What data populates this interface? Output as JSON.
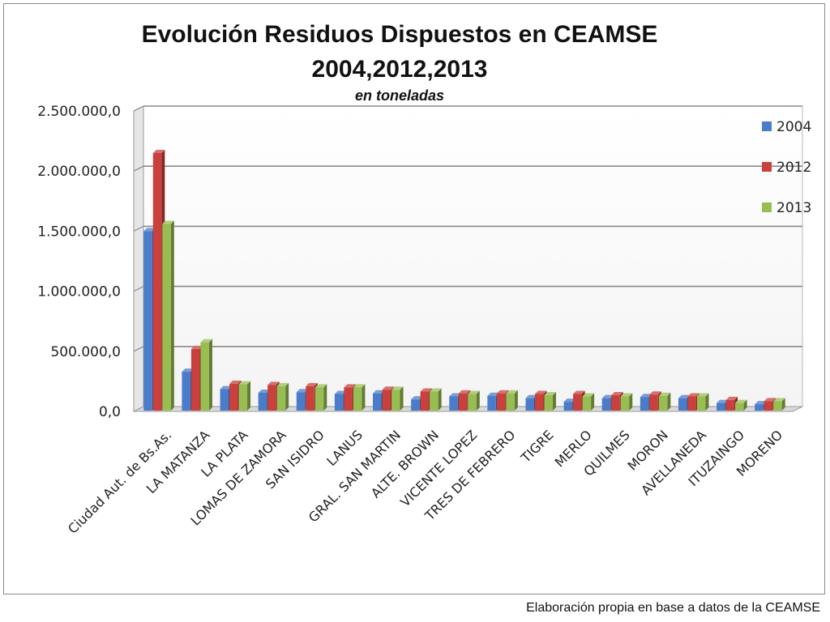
{
  "footer": {
    "source_note": "Elaboración propia en base a datos de la CEAMSE"
  },
  "chart_data": {
    "type": "bar",
    "title": "Evolución Residuos Dispuestos en CEAMSE",
    "title_line2": "2004,2012,2013",
    "subtitle": "en toneladas",
    "xlabel": "",
    "ylabel": "",
    "ylim": [
      0,
      2500000
    ],
    "yticks": [
      0,
      500000,
      1000000,
      1500000,
      2000000,
      2500000
    ],
    "ytick_labels": [
      "0,0",
      "500.000,0",
      "1.000.000,0",
      "1.500.000,0",
      "2.000.000,0",
      "2.500.000,0"
    ],
    "grid": true,
    "legend_position": "right",
    "categories": [
      "Ciudad Aut. de Bs.As.",
      "LA MATANZA",
      "LA PLATA",
      "LOMAS DE ZAMORA",
      "SAN ISIDRO",
      "LANUS",
      "GRAL. SAN MARTIN",
      "ALTE. BROWN",
      "VICENTE LOPEZ",
      "TRES DE FEBRERO",
      "TIGRE",
      "MERLO",
      "QUILMES",
      "MORON",
      "AVELLANEDA",
      "ITUZAINGO",
      "MORENO"
    ],
    "series": [
      {
        "name": "2004",
        "color": "#4a7cc9",
        "values": [
          1500000,
          330000,
          185000,
          155000,
          160000,
          145000,
          150000,
          100000,
          125000,
          130000,
          110000,
          80000,
          110000,
          120000,
          110000,
          70000,
          60000
        ]
      },
      {
        "name": "2012",
        "color": "#c9403d",
        "values": [
          2150000,
          520000,
          230000,
          220000,
          210000,
          200000,
          180000,
          165000,
          150000,
          150000,
          145000,
          145000,
          135000,
          140000,
          125000,
          95000,
          85000
        ]
      },
      {
        "name": "2013",
        "color": "#98bd52",
        "values": [
          1560000,
          575000,
          225000,
          210000,
          200000,
          200000,
          180000,
          165000,
          145000,
          150000,
          135000,
          125000,
          125000,
          130000,
          125000,
          70000,
          85000
        ]
      }
    ]
  }
}
